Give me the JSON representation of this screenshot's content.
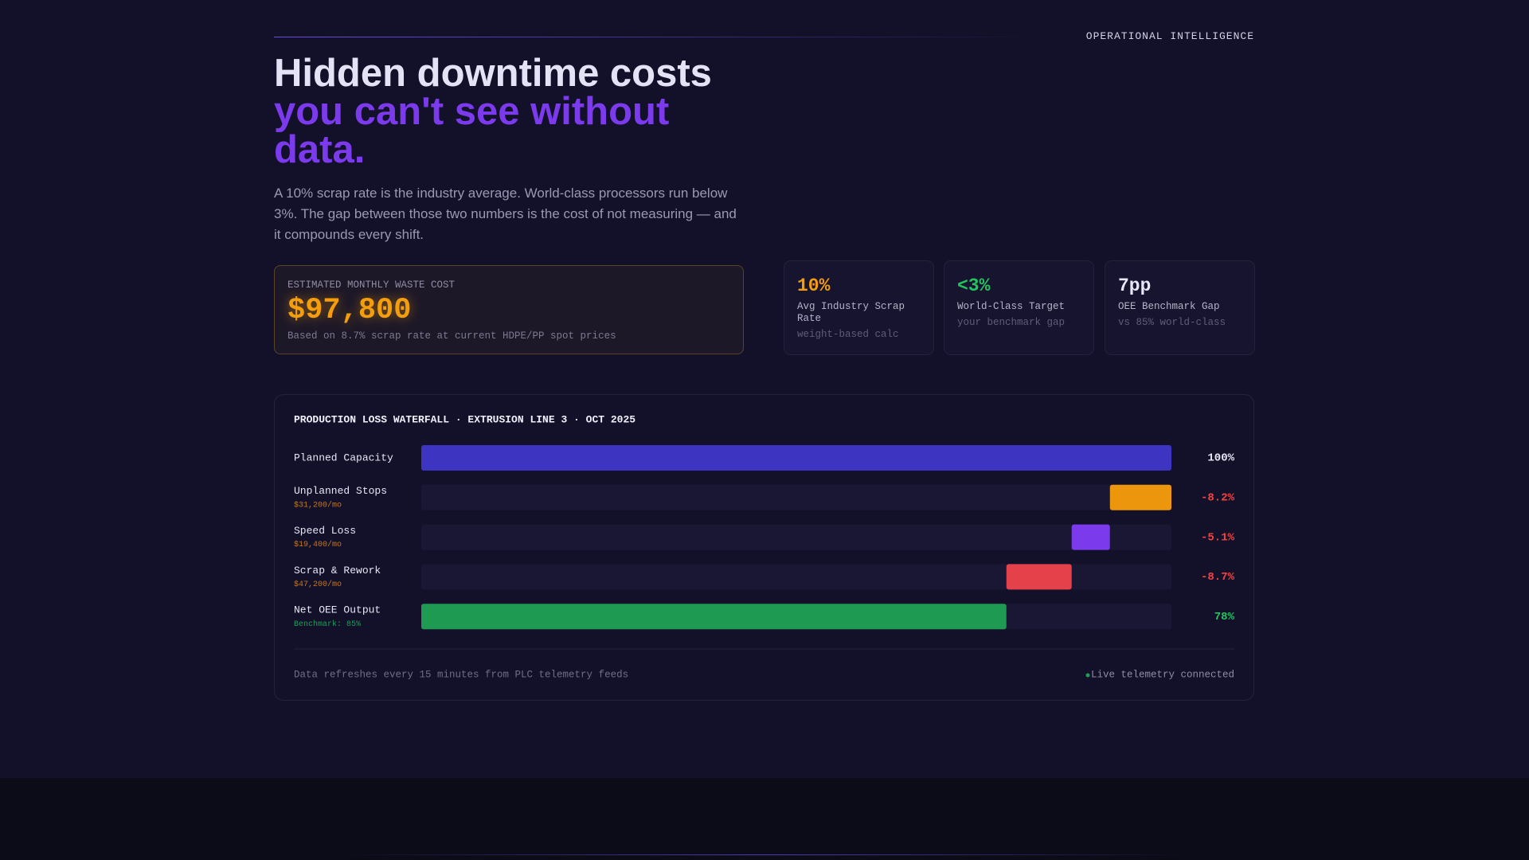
{
  "header": {
    "eyebrow": "OPERATIONAL INTELLIGENCE",
    "title_line1": "Hidden downtime costs",
    "title_line2": "you can't see without data.",
    "intro": "A 10% scrap rate is the industry average. World-class processors run below 3%. The gap between those two numbers is the cost of not measuring — and it compounds every shift."
  },
  "waste_card": {
    "label": "ESTIMATED MONTHLY WASTE COST",
    "value": "$97,800",
    "note": "Based on 8.7% scrap rate at current HDPE/PP spot prices"
  },
  "stats": [
    {
      "value": "10%",
      "label": "Avg Industry Scrap Rate",
      "note": "weight-based calc",
      "color": "#f59e0b"
    },
    {
      "value": "<3%",
      "label": "World-Class Target",
      "note": "your benchmark gap",
      "color": "#22c55e"
    },
    {
      "value": "7pp",
      "label": "OEE Benchmark Gap",
      "note": "vs 85% world-class",
      "color": "#e8e6f5"
    }
  ],
  "chart_data": {
    "type": "waterfall",
    "title": "PRODUCTION LOSS WATERFALL · EXTRUSION LINE 3 · OCT 2025",
    "categories": [
      "Planned Capacity",
      "Unplanned Stops",
      "Speed Loss",
      "Scrap & Rework",
      "Net OEE Output"
    ],
    "sublabels": [
      null,
      "$31,200/mo",
      "$19,400/mo",
      "$47,200/mo",
      "Benchmark: 85%"
    ],
    "sublabel_colors": [
      null,
      "#c7781a",
      "#c7781a",
      "#c7781a",
      "#1f9d55"
    ],
    "values": [
      100,
      -8.2,
      -5.1,
      -8.7,
      78
    ],
    "value_labels": [
      "100%",
      "-8.2%",
      "-5.1%",
      "-8.7%",
      "78%"
    ],
    "value_label_colors": [
      "#e8e6f5",
      "#ef4444",
      "#ef4444",
      "#ef4444",
      "#22c55e"
    ],
    "colors": [
      "#3d35c2",
      "#eb960d",
      "#7c3aed",
      "#e5414a",
      "#1e9a52"
    ],
    "xlim": [
      0,
      100
    ]
  },
  "footer": {
    "note": "Data refreshes every 15 minutes from PLC telemetry feeds",
    "status": "Live telemetry connected"
  }
}
